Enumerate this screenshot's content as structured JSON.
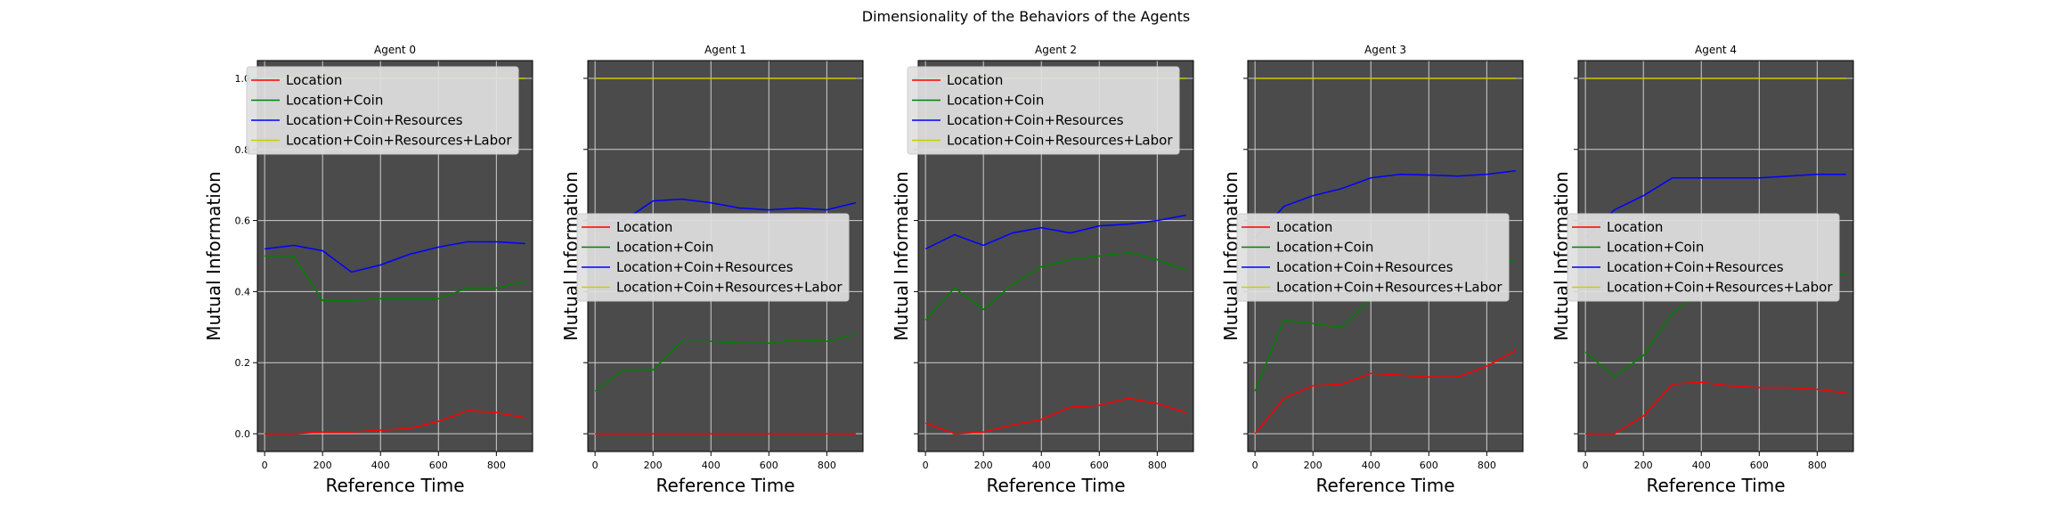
{
  "figure_title": "Dimensionality of the Behaviors of the Agents",
  "colors": {
    "panel_bg": "#4b4b4b",
    "grid": "#cfcfcf",
    "legend_bg": "#e0e0e0"
  },
  "chart_data": [
    {
      "type": "line",
      "title": "Agent 0",
      "xlabel": "Reference Time",
      "ylabel": "Mutual Information",
      "xlim": [
        -25,
        925
      ],
      "ylim": [
        -0.05,
        1.05
      ],
      "xticks": [
        "0",
        "200",
        "400",
        "600",
        "800"
      ],
      "yticks": [
        "0.0",
        "0.2",
        "0.4",
        "0.6",
        "0.8",
        "1.0"
      ],
      "grid": true,
      "legend_position": "upper-left",
      "x": [
        0,
        100,
        200,
        300,
        400,
        500,
        600,
        700,
        800,
        900
      ],
      "series": [
        {
          "name": "Location",
          "color": "#ff0000",
          "values": [
            0.0,
            0.0,
            0.005,
            0.005,
            0.01,
            0.015,
            0.035,
            0.065,
            0.06,
            0.045
          ]
        },
        {
          "name": "Location+Coin",
          "color": "#008000",
          "values": [
            0.5,
            0.5,
            0.375,
            0.375,
            0.38,
            0.38,
            0.38,
            0.41,
            0.41,
            0.43
          ]
        },
        {
          "name": "Location+Coin+Resources",
          "color": "#0000ff",
          "values": [
            0.52,
            0.53,
            0.515,
            0.455,
            0.475,
            0.505,
            0.525,
            0.54,
            0.54,
            0.535
          ]
        },
        {
          "name": "Location+Coin+Resources+Labor",
          "color": "#cccc00",
          "values": [
            1.0,
            1.0,
            1.0,
            1.0,
            1.0,
            1.0,
            1.0,
            1.0,
            1.0,
            1.0
          ]
        }
      ]
    },
    {
      "type": "line",
      "title": "Agent 1",
      "xlabel": "Reference Time",
      "ylabel": "Mutual Information",
      "xlim": [
        -25,
        925
      ],
      "ylim": [
        -0.05,
        1.05
      ],
      "xticks": [
        "0",
        "200",
        "400",
        "600",
        "800"
      ],
      "yticks": [],
      "grid": true,
      "legend_position": "center-left",
      "x": [
        0,
        100,
        200,
        300,
        400,
        500,
        600,
        700,
        800,
        900
      ],
      "series": [
        {
          "name": "Location",
          "color": "#ff0000",
          "values": [
            0.0,
            0.0,
            0.0,
            0.0,
            0.0,
            0.0,
            0.0,
            0.0,
            0.0,
            0.0
          ]
        },
        {
          "name": "Location+Coin",
          "color": "#008000",
          "values": [
            0.12,
            0.18,
            0.18,
            0.26,
            0.26,
            0.255,
            0.255,
            0.265,
            0.26,
            0.28
          ]
        },
        {
          "name": "Location+Coin+Resources",
          "color": "#0000ff",
          "values": [
            0.58,
            0.6,
            0.655,
            0.66,
            0.65,
            0.635,
            0.63,
            0.635,
            0.63,
            0.65
          ]
        },
        {
          "name": "Location+Coin+Resources+Labor",
          "color": "#cccc00",
          "values": [
            1.0,
            1.0,
            1.0,
            1.0,
            1.0,
            1.0,
            1.0,
            1.0,
            1.0,
            1.0
          ]
        }
      ]
    },
    {
      "type": "line",
      "title": "Agent 2",
      "xlabel": "Reference Time",
      "ylabel": "Mutual Information",
      "xlim": [
        -25,
        925
      ],
      "ylim": [
        -0.05,
        1.05
      ],
      "xticks": [
        "0",
        "200",
        "400",
        "600",
        "800"
      ],
      "yticks": [],
      "grid": true,
      "legend_position": "upper-left",
      "x": [
        0,
        100,
        200,
        300,
        400,
        500,
        600,
        700,
        800,
        900
      ],
      "series": [
        {
          "name": "Location",
          "color": "#ff0000",
          "values": [
            0.03,
            0.0,
            0.005,
            0.025,
            0.04,
            0.075,
            0.08,
            0.1,
            0.085,
            0.06
          ]
        },
        {
          "name": "Location+Coin",
          "color": "#008000",
          "values": [
            0.32,
            0.41,
            0.35,
            0.42,
            0.47,
            0.49,
            0.5,
            0.51,
            0.49,
            0.46
          ]
        },
        {
          "name": "Location+Coin+Resources",
          "color": "#0000ff",
          "values": [
            0.52,
            0.56,
            0.53,
            0.565,
            0.58,
            0.565,
            0.585,
            0.59,
            0.6,
            0.615
          ]
        },
        {
          "name": "Location+Coin+Resources+Labor",
          "color": "#cccc00",
          "values": [
            1.0,
            1.0,
            1.0,
            1.0,
            1.0,
            1.0,
            1.0,
            1.0,
            1.0,
            1.0
          ]
        }
      ]
    },
    {
      "type": "line",
      "title": "Agent 3",
      "xlabel": "Reference Time",
      "ylabel": "Mutual Information",
      "xlim": [
        -25,
        925
      ],
      "ylim": [
        -0.05,
        1.05
      ],
      "xticks": [
        "0",
        "200",
        "400",
        "600",
        "800"
      ],
      "yticks": [],
      "grid": true,
      "legend_position": "center-left",
      "x": [
        0,
        100,
        200,
        300,
        400,
        500,
        600,
        700,
        800,
        900
      ],
      "series": [
        {
          "name": "Location",
          "color": "#ff0000",
          "values": [
            0.0,
            0.1,
            0.135,
            0.14,
            0.17,
            0.165,
            0.16,
            0.16,
            0.19,
            0.235
          ]
        },
        {
          "name": "Location+Coin",
          "color": "#008000",
          "values": [
            0.12,
            0.32,
            0.31,
            0.3,
            0.38,
            0.43,
            0.44,
            0.46,
            0.47,
            0.49
          ]
        },
        {
          "name": "Location+Coin+Resources",
          "color": "#0000ff",
          "values": [
            0.55,
            0.64,
            0.67,
            0.69,
            0.72,
            0.73,
            0.728,
            0.725,
            0.73,
            0.74
          ]
        },
        {
          "name": "Location+Coin+Resources+Labor",
          "color": "#cccc00",
          "values": [
            1.0,
            1.0,
            1.0,
            1.0,
            1.0,
            1.0,
            1.0,
            1.0,
            1.0,
            1.0
          ]
        }
      ]
    },
    {
      "type": "line",
      "title": "Agent 4",
      "xlabel": "Reference Time",
      "ylabel": "Mutual Information",
      "xlim": [
        -25,
        925
      ],
      "ylim": [
        -0.05,
        1.05
      ],
      "xticks": [
        "0",
        "200",
        "400",
        "600",
        "800"
      ],
      "yticks": [],
      "grid": true,
      "legend_position": "center-left",
      "x": [
        0,
        100,
        200,
        300,
        400,
        500,
        600,
        700,
        800,
        900
      ],
      "series": [
        {
          "name": "Location",
          "color": "#ff0000",
          "values": [
            0.0,
            0.0,
            0.05,
            0.14,
            0.145,
            0.135,
            0.13,
            0.13,
            0.125,
            0.115
          ]
        },
        {
          "name": "Location+Coin",
          "color": "#008000",
          "values": [
            0.23,
            0.16,
            0.22,
            0.34,
            0.4,
            0.42,
            0.43,
            0.44,
            0.44,
            0.45
          ]
        },
        {
          "name": "Location+Coin+Resources",
          "color": "#0000ff",
          "values": [
            0.55,
            0.63,
            0.67,
            0.72,
            0.72,
            0.72,
            0.72,
            0.725,
            0.73,
            0.73
          ]
        },
        {
          "name": "Location+Coin+Resources+Labor",
          "color": "#cccc00",
          "values": [
            1.0,
            1.0,
            1.0,
            1.0,
            1.0,
            1.0,
            1.0,
            1.0,
            1.0,
            1.0
          ]
        }
      ]
    }
  ]
}
